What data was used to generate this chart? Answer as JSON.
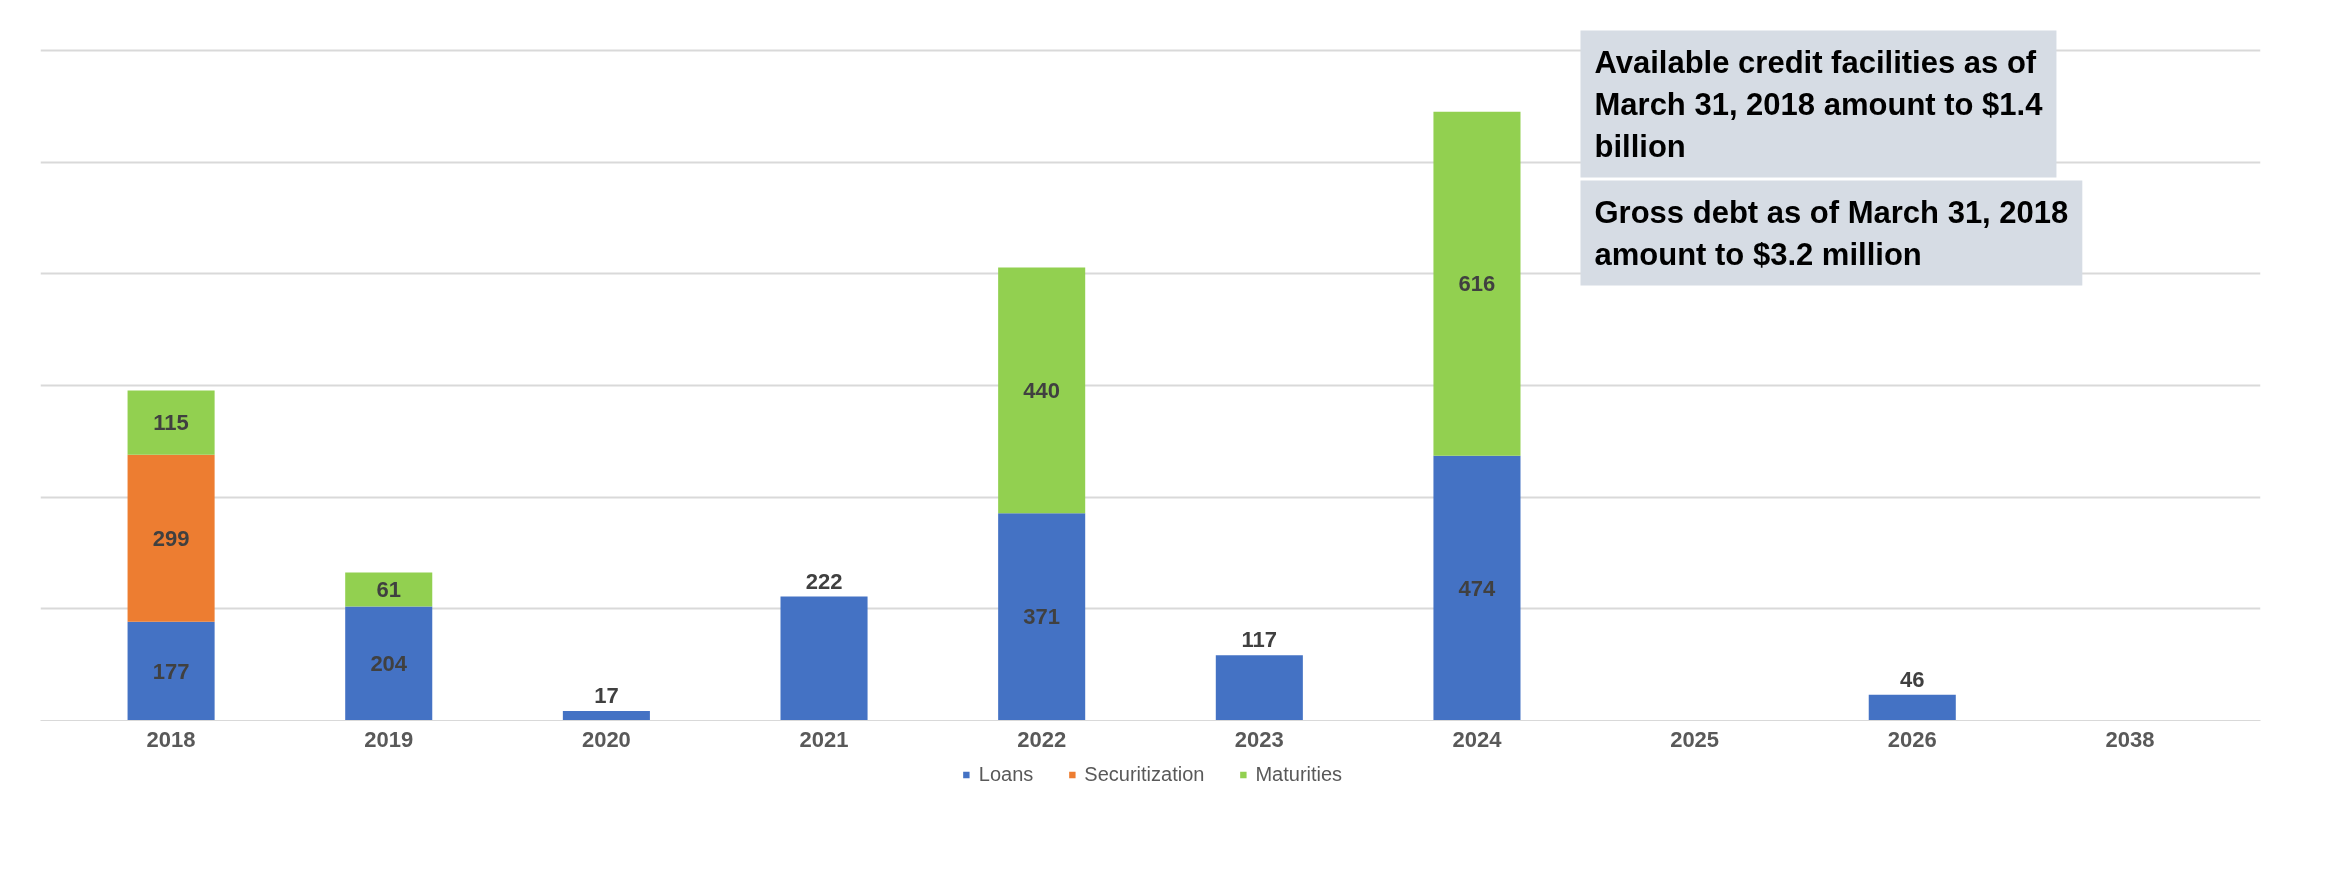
{
  "chart_data": {
    "type": "bar",
    "stacked": true,
    "data_labels": true,
    "legend": "bottom",
    "grid": "y",
    "tick_labels": "x",
    "categories": [
      "2018",
      "2019",
      "2020",
      "2021",
      "2022",
      "2023",
      "2024",
      "2025",
      "2026",
      "2038"
    ],
    "series": [
      {
        "name": "Loans",
        "color": "#4472c4",
        "values": [
          177,
          204,
          17,
          222,
          371,
          117,
          474,
          null,
          46,
          null
        ]
      },
      {
        "name": "Securitization",
        "color": "#ed7d31",
        "values": [
          299,
          null,
          null,
          null,
          null,
          null,
          null,
          null,
          null,
          null
        ]
      },
      {
        "name": "Maturities",
        "color": "#92d050",
        "values": [
          115,
          61,
          null,
          null,
          440,
          null,
          616,
          null,
          null,
          null
        ]
      }
    ],
    "annotations": [
      "Available credit facilities as of March 31, 2018 amount to $1.4 billion",
      "Gross debt as of March 31, 2018 amount to  $3.2 million"
    ]
  }
}
